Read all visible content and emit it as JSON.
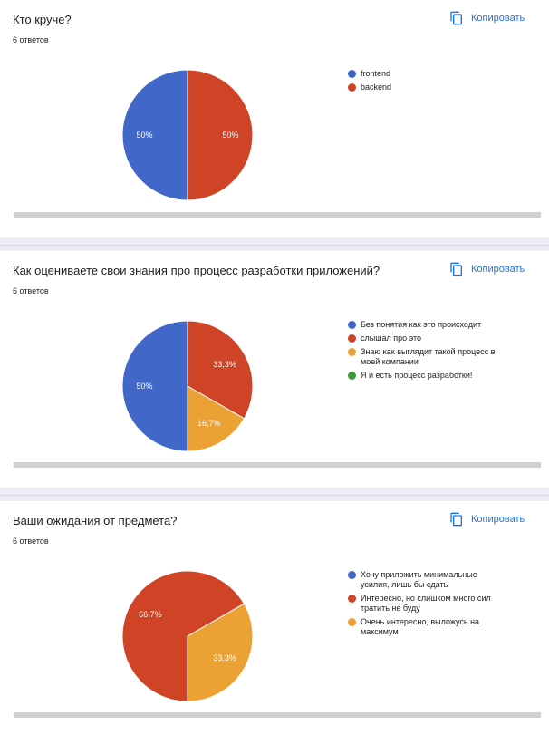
{
  "copy_label": "Копировать",
  "copy_icon": "copy-icon",
  "accent_color": "#1a73e8",
  "questions": [
    {
      "title": "Кто круче?",
      "count": "6 ответов",
      "chart_data": {
        "type": "pie",
        "title": "Кто круче?",
        "categories": [
          "frontend",
          "backend"
        ],
        "values": [
          50,
          50
        ],
        "colors": [
          "#4167c8",
          "#cf4326"
        ],
        "data_labels": [
          "50%",
          "50%"
        ],
        "legend": "right"
      }
    },
    {
      "title": "Как оцениваете свои знания про процесс разработки приложений?",
      "count": "6 ответов",
      "chart_data": {
        "type": "pie",
        "title": "Как оцениваете свои знания про процесс разработки приложений?",
        "categories": [
          "Без понятия как это происходит",
          "слышал про это",
          "Знаю как выглядит такой процесс в моей компании",
          "Я и есть процесс разработки!"
        ],
        "values": [
          50,
          33.3,
          16.7,
          0
        ],
        "colors": [
          "#4167c8",
          "#cf4326",
          "#eba134",
          "#3e9a3a"
        ],
        "data_labels": [
          "50%",
          "33,3%",
          "16,7%",
          ""
        ],
        "legend": "right"
      }
    },
    {
      "title": "Ваши ожидания от предмета?",
      "count": "6 ответов",
      "chart_data": {
        "type": "pie",
        "title": "Ваши ожидания от предмета?",
        "categories": [
          "Хочу приложить минимальные усилия, лишь бы сдать",
          "Интересно, но слишком много сил тратить не буду",
          "Очень интересно, выложусь на максимум"
        ],
        "values": [
          0,
          66.7,
          33.3
        ],
        "colors": [
          "#4167c8",
          "#cf4326",
          "#eba134"
        ],
        "data_labels": [
          "",
          "66,7%",
          "33,3%"
        ],
        "legend": "right"
      }
    }
  ]
}
